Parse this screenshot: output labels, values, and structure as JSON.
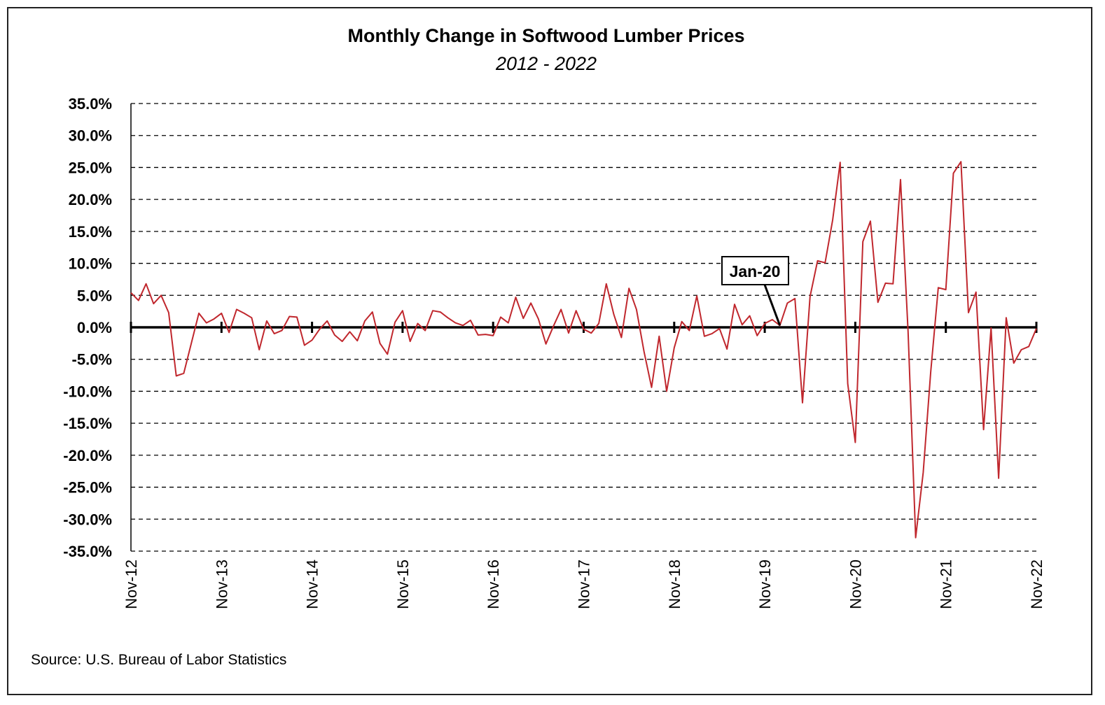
{
  "chart_data": {
    "type": "line",
    "title": "Monthly Change in Softwood Lumber Prices",
    "subtitle": "2012 - 2022",
    "source": "Source: U.S. Bureau of Labor Statistics",
    "xlabel": "",
    "ylabel": "",
    "ylim": [
      -35,
      35
    ],
    "y_ticks": [
      "35.0%",
      "30.0%",
      "25.0%",
      "20.0%",
      "15.0%",
      "10.0%",
      "5.0%",
      "0.0%",
      "-5.0%",
      "-10.0%",
      "-15.0%",
      "-20.0%",
      "-25.0%",
      "-30.0%",
      "-35.0%"
    ],
    "x_ticks": [
      "Nov-12",
      "Nov-13",
      "Nov-14",
      "Nov-15",
      "Nov-16",
      "Nov-17",
      "Nov-18",
      "Nov-19",
      "Nov-20",
      "Nov-21",
      "Nov-22"
    ],
    "grid": true,
    "colors": {
      "series": "#c0272d",
      "zero_line": "#000000",
      "grid": "#000000"
    },
    "annotation": {
      "label": "Jan-20",
      "x": "2020-01"
    },
    "series": [
      {
        "color": "#c0272d",
        "x_start": "2012-11",
        "x_step": "1 month",
        "values": [
          5.4,
          4.2,
          6.8,
          3.7,
          5.0,
          2.3,
          -7.6,
          -7.2,
          -2.5,
          2.2,
          0.7,
          1.3,
          2.2,
          -0.8,
          2.8,
          2.2,
          1.5,
          -3.5,
          1.0,
          -1.0,
          -0.5,
          1.7,
          1.6,
          -2.8,
          -2.0,
          -0.3,
          1.0,
          -1.2,
          -2.2,
          -0.7,
          -2.1,
          1.0,
          2.4,
          -2.5,
          -4.2,
          0.8,
          2.6,
          -2.2,
          0.6,
          -0.5,
          2.6,
          2.4,
          1.5,
          0.7,
          0.3,
          1.1,
          -1.2,
          -1.1,
          -1.3,
          1.6,
          0.7,
          4.7,
          1.4,
          3.8,
          1.3,
          -2.6,
          0.2,
          2.8,
          -0.9,
          2.6,
          -0.3,
          -0.9,
          0.6,
          6.8,
          2.0,
          -1.6,
          6.1,
          2.8,
          -3.8,
          -9.4,
          -1.4,
          -10.0,
          -3.2,
          0.9,
          -0.5,
          4.9,
          -1.4,
          -1.0,
          -0.2,
          -3.4,
          3.6,
          0.4,
          1.8,
          -1.3,
          0.6,
          1.2,
          0.3,
          3.8,
          4.5,
          -11.8,
          4.8,
          10.4,
          10.1,
          16.8,
          25.8,
          -8.8,
          -18.0,
          13.4,
          16.6,
          3.9,
          6.9,
          6.8,
          23.1,
          -0.7,
          -32.9,
          -22.7,
          -7.0,
          6.2,
          5.9,
          24.1,
          25.9,
          2.3,
          5.5,
          -16.0,
          -0.1,
          -23.6,
          1.5,
          -5.6,
          -3.5,
          -3.0,
          -0.2
        ]
      }
    ]
  }
}
